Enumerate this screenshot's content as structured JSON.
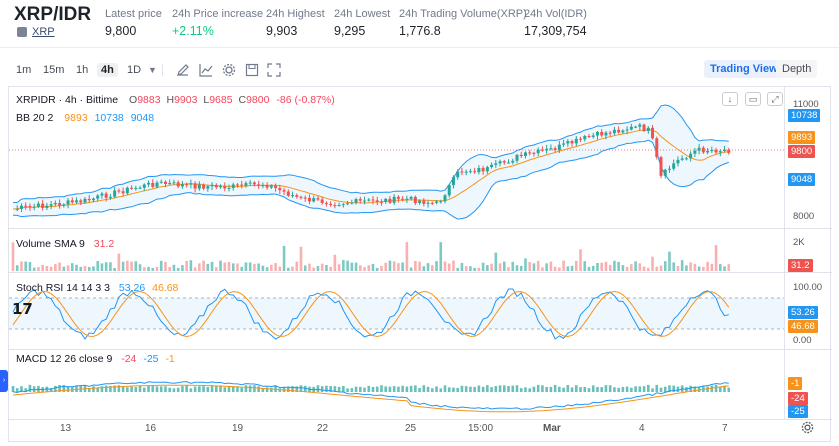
{
  "header": {
    "pair": "XRP/IDR",
    "coin_link": "XRP",
    "stats": [
      {
        "label": "Latest price",
        "value": "9,800",
        "color": "#1e2329"
      },
      {
        "label": "24h Price increase",
        "value": "+2.11%",
        "color": "#0ecb81"
      },
      {
        "label": "24h Highest",
        "value": "9,903",
        "color": "#1e2329"
      },
      {
        "label": "24h Lowest",
        "value": "9,295",
        "color": "#1e2329"
      },
      {
        "label": "24h Trading Volume(XRP)",
        "value": "1,776.8",
        "color": "#1e2329"
      },
      {
        "label": "24h Vol(IDR)",
        "value": "17,309,754",
        "color": "#1e2329"
      }
    ]
  },
  "toolbar": {
    "timeframes": [
      "1m",
      "15m",
      "1h",
      "4h",
      "1D"
    ],
    "active_timeframe": "4h",
    "icons": [
      "chevron-down-icon",
      "pencil-icon",
      "indicator-icon",
      "gear-icon",
      "save-icon",
      "fullscreen-icon"
    ],
    "trading_view_label": "Trading View",
    "depth_label": "Depth"
  },
  "chart": {
    "symbol_line": "XRPIDR · 4h · Bittime",
    "ohlc": {
      "o_label": "O",
      "o": "9883",
      "h_label": "H",
      "h": "9903",
      "l_label": "L",
      "l": "9685",
      "c_label": "C",
      "c": "9800",
      "change": "-86 (-0.87%)"
    },
    "bb_legend": {
      "label": "BB 20 2",
      "v1": "9893",
      "v2": "10738",
      "v3": "9048"
    },
    "price_axis": [
      "11000",
      "10738",
      "9893",
      "9800",
      "9048",
      "8000"
    ],
    "volume_legend": {
      "label": "Volume SMA 9",
      "value": "31.2"
    },
    "volume_axis": [
      "2K",
      "31.2"
    ],
    "stoch_legend": {
      "label": "Stoch RSI 14 14 3 3",
      "k": "53.26",
      "d": "46.68"
    },
    "stoch_axis": [
      "100.00",
      "53.26",
      "46.68",
      "0.00"
    ],
    "macd_legend": {
      "label": "MACD 12 26 close 9",
      "a": "-24",
      "b": "-25",
      "c": "-1"
    },
    "macd_axis": [
      "-1",
      "-24",
      "-25"
    ],
    "x_labels": [
      "13",
      "16",
      "19",
      "22",
      "25",
      "15:00",
      "Mar",
      "4",
      "7"
    ],
    "colors": {
      "up": "#26a69a",
      "down": "#ef5350",
      "bb": "#2196f3",
      "basis": "#f7931a",
      "accent": "#2962ff"
    }
  }
}
